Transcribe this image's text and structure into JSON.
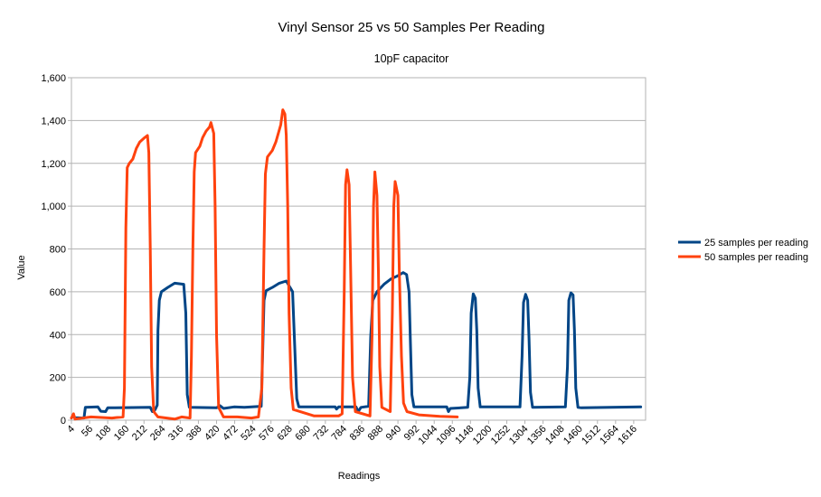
{
  "chart_data": {
    "type": "line",
    "title": "Vinyl Sensor 25 vs 50 Samples Per Reading",
    "subtitle": "10pF capacitor",
    "xlabel": "Readings",
    "ylabel": "Value",
    "xlim": [
      4,
      1650
    ],
    "ylim": [
      0,
      1600
    ],
    "y_ticks": [
      "0",
      "200",
      "400",
      "600",
      "800",
      "1,000",
      "1,200",
      "1,400",
      "1,600"
    ],
    "x_ticks": [
      4,
      56,
      108,
      160,
      212,
      264,
      316,
      368,
      420,
      472,
      524,
      576,
      628,
      680,
      732,
      784,
      836,
      888,
      940,
      992,
      1044,
      1096,
      1148,
      1200,
      1252,
      1304,
      1356,
      1408,
      1460,
      1512,
      1564,
      1616
    ],
    "grid": true,
    "legend_position": "right",
    "series": [
      {
        "name": "25 samples per reading",
        "color": "#004586",
        "points": [
          [
            4,
            10
          ],
          [
            10,
            22
          ],
          [
            14,
            12
          ],
          [
            40,
            10
          ],
          [
            44,
            60
          ],
          [
            80,
            62
          ],
          [
            88,
            42
          ],
          [
            102,
            40
          ],
          [
            108,
            58
          ],
          [
            230,
            60
          ],
          [
            236,
            40
          ],
          [
            240,
            40
          ],
          [
            244,
            50
          ],
          [
            250,
            70
          ],
          [
            252,
            420
          ],
          [
            256,
            560
          ],
          [
            262,
            600
          ],
          [
            280,
            620
          ],
          [
            300,
            640
          ],
          [
            326,
            635
          ],
          [
            332,
            500
          ],
          [
            336,
            120
          ],
          [
            342,
            60
          ],
          [
            420,
            58
          ],
          [
            430,
            68
          ],
          [
            440,
            55
          ],
          [
            470,
            62
          ],
          [
            500,
            60
          ],
          [
            548,
            65
          ],
          [
            552,
            300
          ],
          [
            556,
            560
          ],
          [
            562,
            605
          ],
          [
            580,
            620
          ],
          [
            600,
            640
          ],
          [
            620,
            650
          ],
          [
            638,
            600
          ],
          [
            644,
            350
          ],
          [
            650,
            100
          ],
          [
            656,
            62
          ],
          [
            760,
            62
          ],
          [
            764,
            52
          ],
          [
            770,
            62
          ],
          [
            820,
            62
          ],
          [
            826,
            40
          ],
          [
            834,
            60
          ],
          [
            856,
            65
          ],
          [
            862,
            390
          ],
          [
            868,
            560
          ],
          [
            880,
            600
          ],
          [
            900,
            635
          ],
          [
            920,
            660
          ],
          [
            940,
            675
          ],
          [
            955,
            690
          ],
          [
            965,
            680
          ],
          [
            972,
            600
          ],
          [
            976,
            350
          ],
          [
            980,
            120
          ],
          [
            986,
            62
          ],
          [
            1080,
            62
          ],
          [
            1085,
            40
          ],
          [
            1090,
            55
          ],
          [
            1140,
            60
          ],
          [
            1146,
            200
          ],
          [
            1150,
            500
          ],
          [
            1156,
            590
          ],
          [
            1162,
            570
          ],
          [
            1166,
            420
          ],
          [
            1170,
            150
          ],
          [
            1176,
            62
          ],
          [
            1290,
            62
          ],
          [
            1296,
            300
          ],
          [
            1300,
            550
          ],
          [
            1306,
            588
          ],
          [
            1312,
            560
          ],
          [
            1316,
            380
          ],
          [
            1320,
            130
          ],
          [
            1326,
            60
          ],
          [
            1420,
            62
          ],
          [
            1426,
            250
          ],
          [
            1430,
            560
          ],
          [
            1436,
            595
          ],
          [
            1442,
            585
          ],
          [
            1446,
            420
          ],
          [
            1450,
            150
          ],
          [
            1456,
            60
          ],
          [
            1466,
            58
          ],
          [
            1636,
            62
          ]
        ]
      },
      {
        "name": "50 samples per reading",
        "color": "#ff420e",
        "points": [
          [
            4,
            10
          ],
          [
            10,
            30
          ],
          [
            14,
            5
          ],
          [
            60,
            15
          ],
          [
            120,
            10
          ],
          [
            152,
            15
          ],
          [
            156,
            150
          ],
          [
            160,
            900
          ],
          [
            164,
            1180
          ],
          [
            170,
            1200
          ],
          [
            180,
            1220
          ],
          [
            190,
            1270
          ],
          [
            200,
            1300
          ],
          [
            214,
            1320
          ],
          [
            222,
            1330
          ],
          [
            226,
            1250
          ],
          [
            230,
            800
          ],
          [
            234,
            250
          ],
          [
            240,
            40
          ],
          [
            252,
            15
          ],
          [
            300,
            5
          ],
          [
            320,
            15
          ],
          [
            344,
            10
          ],
          [
            348,
            300
          ],
          [
            352,
            800
          ],
          [
            356,
            1160
          ],
          [
            360,
            1250
          ],
          [
            372,
            1280
          ],
          [
            380,
            1320
          ],
          [
            390,
            1350
          ],
          [
            400,
            1370
          ],
          [
            404,
            1390
          ],
          [
            412,
            1340
          ],
          [
            416,
            1000
          ],
          [
            420,
            400
          ],
          [
            426,
            60
          ],
          [
            440,
            15
          ],
          [
            480,
            15
          ],
          [
            520,
            10
          ],
          [
            540,
            15
          ],
          [
            550,
            150
          ],
          [
            556,
            800
          ],
          [
            560,
            1150
          ],
          [
            566,
            1230
          ],
          [
            580,
            1260
          ],
          [
            590,
            1300
          ],
          [
            604,
            1380
          ],
          [
            610,
            1450
          ],
          [
            616,
            1430
          ],
          [
            620,
            1330
          ],
          [
            624,
            1000
          ],
          [
            628,
            500
          ],
          [
            634,
            150
          ],
          [
            640,
            50
          ],
          [
            700,
            20
          ],
          [
            770,
            20
          ],
          [
            780,
            30
          ],
          [
            786,
            600
          ],
          [
            790,
            1100
          ],
          [
            794,
            1170
          ],
          [
            800,
            1100
          ],
          [
            804,
            750
          ],
          [
            810,
            200
          ],
          [
            818,
            40
          ],
          [
            860,
            20
          ],
          [
            866,
            400
          ],
          [
            870,
            1000
          ],
          [
            874,
            1160
          ],
          [
            880,
            1050
          ],
          [
            884,
            700
          ],
          [
            888,
            250
          ],
          [
            894,
            60
          ],
          [
            918,
            40
          ],
          [
            924,
            500
          ],
          [
            928,
            1000
          ],
          [
            932,
            1115
          ],
          [
            940,
            1050
          ],
          [
            944,
            700
          ],
          [
            950,
            300
          ],
          [
            956,
            80
          ],
          [
            966,
            40
          ],
          [
            1000,
            25
          ],
          [
            1060,
            18
          ],
          [
            1110,
            15
          ]
        ]
      }
    ]
  }
}
